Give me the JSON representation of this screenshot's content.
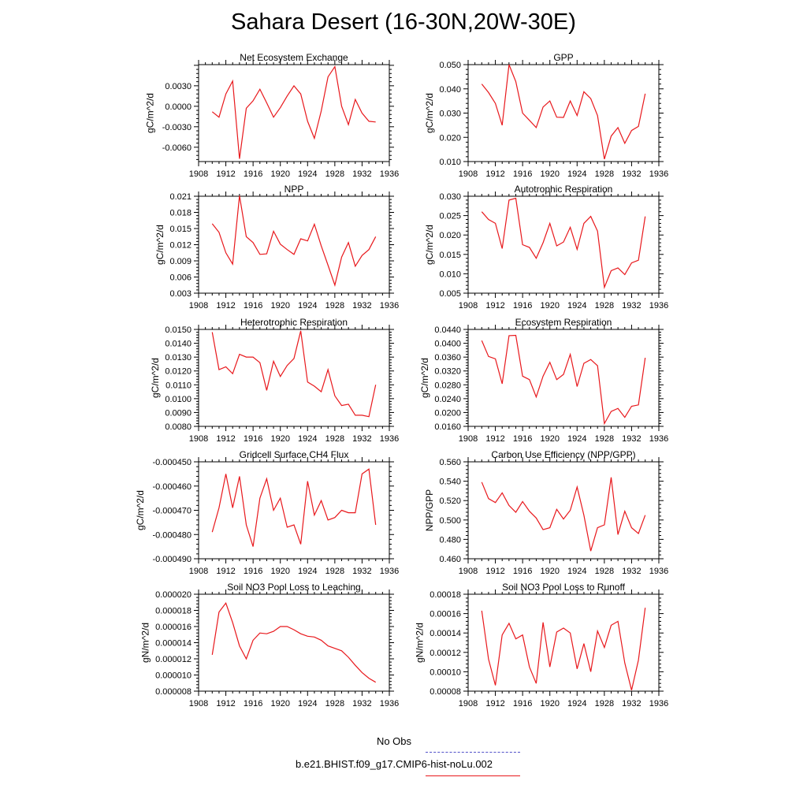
{
  "figure": {
    "title": "Sahara Desert (16-30N,20W-30E)"
  },
  "legend": {
    "obs_label": "No Obs",
    "obs_color": "#5050c8",
    "model_label": "b.e21.BHIST.f09_g17.CMIP6-hist-noLu.002",
    "model_color": "#e8181c"
  },
  "chart_data": [
    {
      "type": "line",
      "title": "Net Ecosystem Exchange",
      "ylabel": "gC/m^2/d",
      "xlim": [
        1908,
        1936
      ],
      "xticks": [
        1908,
        1912,
        1916,
        1920,
        1924,
        1928,
        1932,
        1936
      ],
      "xtick_labels": [
        "1908",
        "1912",
        "1916",
        "1920",
        "1924",
        "1928",
        "1932",
        "1936"
      ],
      "ylim": [
        -0.0081,
        0.0061
      ],
      "yticks": [
        -0.006,
        -0.003,
        0.0,
        0.003
      ],
      "ytick_labels": [
        "-0.0060",
        "-0.0030",
        "0.0000",
        "0.0030"
      ],
      "series": [
        {
          "color": "#e8181c",
          "x": [
            1910,
            1911,
            1912,
            1913,
            1914,
            1915,
            1916,
            1917,
            1918,
            1919,
            1920,
            1921,
            1922,
            1923,
            1924,
            1925,
            1926,
            1927,
            1928,
            1929,
            1930,
            1931,
            1932,
            1933,
            1934
          ],
          "y": [
            -0.0008,
            -0.0016,
            0.0018,
            0.0037,
            -0.0077,
            -0.0003,
            0.0008,
            0.0025,
            0.0005,
            -0.0016,
            -0.0002,
            0.0015,
            0.003,
            0.0018,
            -0.0022,
            -0.0047,
            -0.0007,
            0.0043,
            0.0058,
            0.0,
            -0.0027,
            0.001,
            -0.001,
            -0.0022,
            -0.0023
          ]
        }
      ]
    },
    {
      "type": "line",
      "title": "GPP",
      "ylabel": "gC/m^2/d",
      "xlim": [
        1908,
        1936
      ],
      "xticks": [
        1908,
        1912,
        1916,
        1920,
        1924,
        1928,
        1932,
        1936
      ],
      "xtick_labels": [
        "1908",
        "1912",
        "1916",
        "1920",
        "1924",
        "1928",
        "1932",
        "1936"
      ],
      "ylim": [
        0.01,
        0.05
      ],
      "yticks": [
        0.01,
        0.02,
        0.03,
        0.04,
        0.05
      ],
      "ytick_labels": [
        "0.010",
        "0.020",
        "0.030",
        "0.040",
        "0.050"
      ],
      "series": [
        {
          "color": "#e8181c",
          "x": [
            1910,
            1911,
            1912,
            1913,
            1914,
            1915,
            1916,
            1917,
            1918,
            1919,
            1920,
            1921,
            1922,
            1923,
            1924,
            1925,
            1926,
            1927,
            1928,
            1929,
            1930,
            1931,
            1932,
            1933,
            1934
          ],
          "y": [
            0.042,
            0.0385,
            0.034,
            0.025,
            0.05,
            0.043,
            0.03,
            0.027,
            0.024,
            0.0325,
            0.035,
            0.0283,
            0.0282,
            0.035,
            0.029,
            0.0388,
            0.036,
            0.029,
            0.011,
            0.0205,
            0.024,
            0.0175,
            0.0228,
            0.0245,
            0.038
          ]
        }
      ]
    },
    {
      "type": "line",
      "title": "NPP",
      "ylabel": "gC/m^2/d",
      "xlim": [
        1908,
        1936
      ],
      "xticks": [
        1908,
        1912,
        1916,
        1920,
        1924,
        1928,
        1932,
        1936
      ],
      "xtick_labels": [
        "1908",
        "1912",
        "1916",
        "1920",
        "1924",
        "1928",
        "1932",
        "1936"
      ],
      "ylim": [
        0.003,
        0.021
      ],
      "yticks": [
        0.003,
        0.006,
        0.009,
        0.012,
        0.015,
        0.018,
        0.021
      ],
      "ytick_labels": [
        "0.003",
        "0.006",
        "0.009",
        "0.012",
        "0.015",
        "0.018",
        "0.021"
      ],
      "series": [
        {
          "color": "#e8181c",
          "x": [
            1910,
            1911,
            1912,
            1913,
            1914,
            1915,
            1916,
            1917,
            1918,
            1919,
            1920,
            1921,
            1922,
            1923,
            1924,
            1925,
            1926,
            1927,
            1928,
            1929,
            1930,
            1931,
            1932,
            1933,
            1934
          ],
          "y": [
            0.0159,
            0.0143,
            0.0105,
            0.0084,
            0.0211,
            0.0135,
            0.0124,
            0.0102,
            0.0103,
            0.0145,
            0.0121,
            0.0111,
            0.0102,
            0.0131,
            0.0127,
            0.0158,
            0.0118,
            0.0082,
            0.0045,
            0.0097,
            0.0124,
            0.008,
            0.01,
            0.0111,
            0.0135
          ]
        }
      ]
    },
    {
      "type": "line",
      "title": "Autotrophic Respiration",
      "ylabel": "gC/m^2/d",
      "xlim": [
        1908,
        1936
      ],
      "xticks": [
        1908,
        1912,
        1916,
        1920,
        1924,
        1928,
        1932,
        1936
      ],
      "xtick_labels": [
        "1908",
        "1912",
        "1916",
        "1920",
        "1924",
        "1928",
        "1932",
        "1936"
      ],
      "ylim": [
        0.005,
        0.03
      ],
      "yticks": [
        0.005,
        0.01,
        0.015,
        0.02,
        0.025,
        0.03
      ],
      "ytick_labels": [
        "0.005",
        "0.010",
        "0.015",
        "0.020",
        "0.025",
        "0.030"
      ],
      "series": [
        {
          "color": "#e8181c",
          "x": [
            1910,
            1911,
            1912,
            1913,
            1914,
            1915,
            1916,
            1917,
            1918,
            1919,
            1920,
            1921,
            1922,
            1923,
            1924,
            1925,
            1926,
            1927,
            1928,
            1929,
            1930,
            1931,
            1932,
            1933,
            1934
          ],
          "y": [
            0.026,
            0.024,
            0.023,
            0.0165,
            0.029,
            0.0295,
            0.0175,
            0.0168,
            0.014,
            0.018,
            0.023,
            0.0172,
            0.0182,
            0.022,
            0.0163,
            0.023,
            0.0248,
            0.021,
            0.0065,
            0.0108,
            0.0115,
            0.0098,
            0.0128,
            0.0135,
            0.0248
          ]
        }
      ]
    },
    {
      "type": "line",
      "title": "Heterotrophic Respiration",
      "ylabel": "gC/m^2/d",
      "xlim": [
        1908,
        1936
      ],
      "xticks": [
        1908,
        1912,
        1916,
        1920,
        1924,
        1928,
        1932,
        1936
      ],
      "xtick_labels": [
        "1908",
        "1912",
        "1916",
        "1920",
        "1924",
        "1928",
        "1932",
        "1936"
      ],
      "ylim": [
        0.008,
        0.015
      ],
      "yticks": [
        0.008,
        0.009,
        0.01,
        0.011,
        0.012,
        0.013,
        0.014,
        0.015
      ],
      "ytick_labels": [
        "0.0080",
        "0.0090",
        "0.0100",
        "0.0110",
        "0.0120",
        "0.0130",
        "0.0140",
        "0.0150"
      ],
      "series": [
        {
          "color": "#e8181c",
          "x": [
            1910,
            1911,
            1912,
            1913,
            1914,
            1915,
            1916,
            1917,
            1918,
            1919,
            1920,
            1921,
            1922,
            1923,
            1924,
            1925,
            1926,
            1927,
            1928,
            1929,
            1930,
            1931,
            1932,
            1933,
            1934
          ],
          "y": [
            0.0148,
            0.0121,
            0.0123,
            0.0118,
            0.0132,
            0.013,
            0.013,
            0.0126,
            0.0106,
            0.0127,
            0.0116,
            0.0124,
            0.0129,
            0.0149,
            0.0112,
            0.0109,
            0.0105,
            0.0121,
            0.0102,
            0.0095,
            0.0096,
            0.0088,
            0.0088,
            0.0087,
            0.011
          ]
        }
      ]
    },
    {
      "type": "line",
      "title": "Ecosystem Respiration",
      "ylabel": "gC/m^2/d",
      "xlim": [
        1908,
        1936
      ],
      "xticks": [
        1908,
        1912,
        1916,
        1920,
        1924,
        1928,
        1932,
        1936
      ],
      "xtick_labels": [
        "1908",
        "1912",
        "1916",
        "1920",
        "1924",
        "1928",
        "1932",
        "1936"
      ],
      "ylim": [
        0.016,
        0.044
      ],
      "yticks": [
        0.016,
        0.02,
        0.024,
        0.028,
        0.032,
        0.036,
        0.04,
        0.044
      ],
      "ytick_labels": [
        "0.0160",
        "0.0200",
        "0.0240",
        "0.0280",
        "0.0320",
        "0.0360",
        "0.0400",
        "0.0440"
      ],
      "series": [
        {
          "color": "#e8181c",
          "x": [
            1910,
            1911,
            1912,
            1913,
            1914,
            1915,
            1916,
            1917,
            1918,
            1919,
            1920,
            1921,
            1922,
            1923,
            1924,
            1925,
            1926,
            1927,
            1928,
            1929,
            1930,
            1931,
            1932,
            1933,
            1934
          ],
          "y": [
            0.0408,
            0.0362,
            0.0355,
            0.0283,
            0.0422,
            0.0423,
            0.0305,
            0.0295,
            0.0245,
            0.0305,
            0.0345,
            0.0295,
            0.031,
            0.0368,
            0.0275,
            0.0342,
            0.0353,
            0.0335,
            0.0168,
            0.0203,
            0.0212,
            0.0186,
            0.0218,
            0.0222,
            0.0358
          ]
        }
      ]
    },
    {
      "type": "line",
      "title": "Gridcell Surface CH4 Flux",
      "ylabel": "gC/m^2/d",
      "xlim": [
        1908,
        1936
      ],
      "xticks": [
        1908,
        1912,
        1916,
        1920,
        1924,
        1928,
        1932,
        1936
      ],
      "xtick_labels": [
        "1908",
        "1912",
        "1916",
        "1920",
        "1924",
        "1928",
        "1932",
        "1936"
      ],
      "ylim": [
        -0.00049,
        -0.00045
      ],
      "yticks": [
        -0.00049,
        -0.00048,
        -0.00047,
        -0.00046,
        -0.00045
      ],
      "ytick_labels": [
        "-0.000490",
        "-0.000480",
        "-0.000470",
        "-0.000460",
        "-0.000450"
      ],
      "series": [
        {
          "color": "#e8181c",
          "x": [
            1910,
            1911,
            1912,
            1913,
            1914,
            1915,
            1916,
            1917,
            1918,
            1919,
            1920,
            1921,
            1922,
            1923,
            1924,
            1925,
            1926,
            1927,
            1928,
            1929,
            1930,
            1931,
            1932,
            1933,
            1934
          ],
          "y": [
            -0.000479,
            -0.000469,
            -0.000455,
            -0.000469,
            -0.000456,
            -0.000476,
            -0.000485,
            -0.000465,
            -0.000457,
            -0.00047,
            -0.000465,
            -0.000477,
            -0.000476,
            -0.000484,
            -0.000458,
            -0.000472,
            -0.000466,
            -0.000474,
            -0.000473,
            -0.00047,
            -0.000471,
            -0.000471,
            -0.000455,
            -0.000453,
            -0.000476
          ]
        }
      ]
    },
    {
      "type": "line",
      "title": "Carbon Use Efficiency (NPP/GPP)",
      "ylabel": "NPP/GPP",
      "xlim": [
        1908,
        1936
      ],
      "xticks": [
        1908,
        1912,
        1916,
        1920,
        1924,
        1928,
        1932,
        1936
      ],
      "xtick_labels": [
        "1908",
        "1912",
        "1916",
        "1920",
        "1924",
        "1928",
        "1932",
        "1936"
      ],
      "ylim": [
        0.46,
        0.56
      ],
      "yticks": [
        0.46,
        0.48,
        0.5,
        0.52,
        0.54,
        0.56
      ],
      "ytick_labels": [
        "0.460",
        "0.480",
        "0.500",
        "0.520",
        "0.540",
        "0.560"
      ],
      "series": [
        {
          "color": "#e8181c",
          "x": [
            1910,
            1911,
            1912,
            1913,
            1914,
            1915,
            1916,
            1917,
            1918,
            1919,
            1920,
            1921,
            1922,
            1923,
            1924,
            1925,
            1926,
            1927,
            1928,
            1929,
            1930,
            1931,
            1932,
            1933,
            1934
          ],
          "y": [
            0.539,
            0.522,
            0.518,
            0.528,
            0.515,
            0.508,
            0.519,
            0.509,
            0.502,
            0.49,
            0.492,
            0.511,
            0.501,
            0.51,
            0.534,
            0.505,
            0.468,
            0.492,
            0.495,
            0.544,
            0.485,
            0.509,
            0.492,
            0.486,
            0.505
          ]
        }
      ]
    },
    {
      "type": "line",
      "title": "Soil NO3 Pool Loss to Leaching",
      "ylabel": "gN/m^2/d",
      "xlim": [
        1908,
        1936
      ],
      "xticks": [
        1908,
        1912,
        1916,
        1920,
        1924,
        1928,
        1932,
        1936
      ],
      "xtick_labels": [
        "1908",
        "1912",
        "1916",
        "1920",
        "1924",
        "1928",
        "1932",
        "1936"
      ],
      "ylim": [
        8e-06,
        2e-05
      ],
      "yticks": [
        8e-06,
        1e-05,
        1.2e-05,
        1.4e-05,
        1.6e-05,
        1.8e-05,
        2e-05
      ],
      "ytick_labels": [
        "0.000008",
        "0.000010",
        "0.000012",
        "0.000014",
        "0.000016",
        "0.000018",
        "0.000020"
      ],
      "series": [
        {
          "color": "#e8181c",
          "x": [
            1910,
            1911,
            1912,
            1913,
            1914,
            1915,
            1916,
            1917,
            1918,
            1919,
            1920,
            1921,
            1922,
            1923,
            1924,
            1925,
            1926,
            1927,
            1928,
            1929,
            1930,
            1931,
            1932,
            1933,
            1934
          ],
          "y": [
            1.25e-05,
            1.78e-05,
            1.89e-05,
            1.65e-05,
            1.36e-05,
            1.2e-05,
            1.43e-05,
            1.52e-05,
            1.51e-05,
            1.54e-05,
            1.6e-05,
            1.6e-05,
            1.56e-05,
            1.51e-05,
            1.48e-05,
            1.47e-05,
            1.43e-05,
            1.36e-05,
            1.33e-05,
            1.3e-05,
            1.22e-05,
            1.12e-05,
            1.03e-05,
            9.6e-06,
            9.1e-06
          ]
        }
      ]
    },
    {
      "type": "line",
      "title": "Soil NO3 Pool Loss to Runoff",
      "ylabel": "gN/m^2/d",
      "xlim": [
        1908,
        1936
      ],
      "xticks": [
        1908,
        1912,
        1916,
        1920,
        1924,
        1928,
        1932,
        1936
      ],
      "xtick_labels": [
        "1908",
        "1912",
        "1916",
        "1920",
        "1924",
        "1928",
        "1932",
        "1936"
      ],
      "ylim": [
        8e-05,
        0.00018
      ],
      "yticks": [
        8e-05,
        0.0001,
        0.00012,
        0.00014,
        0.00016,
        0.00018
      ],
      "ytick_labels": [
        "0.00008",
        "0.00010",
        "0.00012",
        "0.00014",
        "0.00016",
        "0.00018"
      ],
      "series": [
        {
          "color": "#e8181c",
          "x": [
            1910,
            1911,
            1912,
            1913,
            1914,
            1915,
            1916,
            1917,
            1918,
            1919,
            1920,
            1921,
            1922,
            1923,
            1924,
            1925,
            1926,
            1927,
            1928,
            1929,
            1930,
            1931,
            1932,
            1933,
            1934
          ],
          "y": [
            0.000163,
            0.000113,
            8.6e-05,
            0.000138,
            0.00015,
            0.000134,
            0.000138,
            0.000105,
            8.8e-05,
            0.000151,
            0.000105,
            0.000141,
            0.000145,
            0.00014,
            0.000103,
            0.000129,
            0.0001,
            0.000142,
            0.000125,
            0.000148,
            0.000152,
            0.000109,
            8.1e-05,
            0.000112,
            0.000166
          ]
        }
      ]
    }
  ]
}
